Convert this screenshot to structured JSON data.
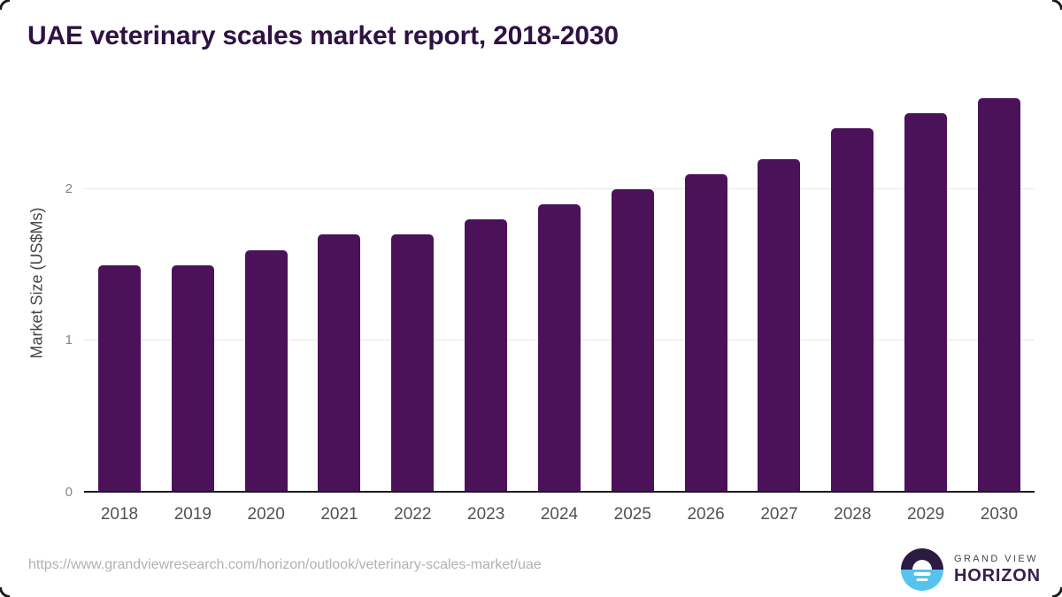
{
  "title": "UAE veterinary scales market report, 2018-2030",
  "chart_data": {
    "type": "bar",
    "title": "UAE veterinary scales market report, 2018-2030",
    "categories": [
      "2018",
      "2019",
      "2020",
      "2021",
      "2022",
      "2023",
      "2024",
      "2025",
      "2026",
      "2027",
      "2028",
      "2029",
      "2030"
    ],
    "values": [
      1.5,
      1.5,
      1.6,
      1.7,
      1.7,
      1.8,
      1.9,
      2.0,
      2.1,
      2.2,
      2.4,
      2.5,
      2.6
    ],
    "xlabel": "",
    "ylabel": "Market Size (US$Ms)",
    "ylim": [
      0,
      2.6
    ],
    "yticks": [
      0,
      1,
      2
    ],
    "grid": true,
    "legend": false,
    "bar_color": "#4b1259"
  },
  "footer": {
    "source_url": "https://www.grandviewresearch.com/horizon/outlook/veterinary-scales-market/uae",
    "logo": {
      "line1": "GRAND VIEW",
      "line2": "HORIZON"
    }
  },
  "colors": {
    "bar": "#4b1259",
    "title": "#2f1143",
    "axis_line": "#1a1a1a",
    "gridline": "#e6e6e6",
    "y_tick_label": "#84858a",
    "x_tick_label": "#515256",
    "y_axis_label": "#47474a",
    "url": "#b2b0b0",
    "logo_purple": "#2b1b42",
    "logo_blue": "#56c3ee",
    "logo_text": "#37204c",
    "logo_subtext": "#46424f",
    "corner": "#1b1b1b"
  }
}
